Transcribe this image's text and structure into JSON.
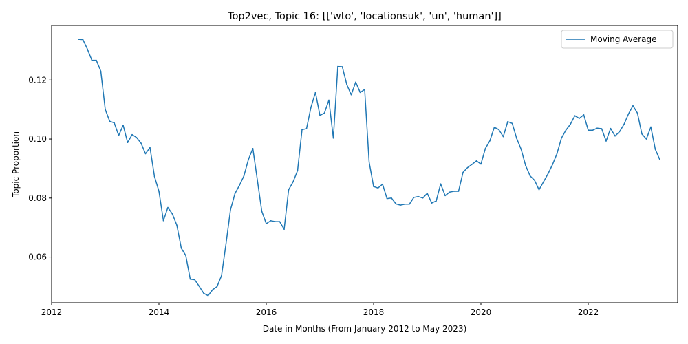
{
  "chart_data": {
    "type": "line",
    "title": "Top2vec, Topic 16: [['wto', 'locationsuk', 'un', 'human']]",
    "xlabel": "Date in Months (From January 2012 to May 2023)",
    "ylabel": "Topic Proportion",
    "xlim": [
      "2012-01",
      "2023-09"
    ],
    "ylim": [
      0.0445,
      0.1385
    ],
    "xticks": [
      "2012",
      "2014",
      "2016",
      "2018",
      "2020",
      "2022"
    ],
    "yticks": [
      "0.06",
      "0.08",
      "0.10",
      "0.12"
    ],
    "grid": false,
    "legend": {
      "position": "top-right",
      "entries": [
        "Moving Average"
      ]
    },
    "colors": {
      "line": "#1f77b4"
    },
    "series": [
      {
        "name": "Moving Average",
        "x": [
          "2012-07",
          "2012-08",
          "2012-09",
          "2012-10",
          "2012-11",
          "2012-12",
          "2013-01",
          "2013-02",
          "2013-03",
          "2013-04",
          "2013-05",
          "2013-06",
          "2013-07",
          "2013-08",
          "2013-09",
          "2013-10",
          "2013-11",
          "2013-12",
          "2014-01",
          "2014-02",
          "2014-03",
          "2014-04",
          "2014-05",
          "2014-06",
          "2014-07",
          "2014-08",
          "2014-09",
          "2014-10",
          "2014-11",
          "2014-12",
          "2015-01",
          "2015-02",
          "2015-03",
          "2015-04",
          "2015-05",
          "2015-06",
          "2015-07",
          "2015-08",
          "2015-09",
          "2015-10",
          "2015-11",
          "2015-12",
          "2016-01",
          "2016-02",
          "2016-03",
          "2016-04",
          "2016-05",
          "2016-06",
          "2016-07",
          "2016-08",
          "2016-09",
          "2016-10",
          "2016-11",
          "2016-12",
          "2017-01",
          "2017-02",
          "2017-03",
          "2017-04",
          "2017-05",
          "2017-06",
          "2017-07",
          "2017-08",
          "2017-09",
          "2017-10",
          "2017-11",
          "2017-12",
          "2018-01",
          "2018-02",
          "2018-03",
          "2018-04",
          "2018-05",
          "2018-06",
          "2018-07",
          "2018-08",
          "2018-09",
          "2018-10",
          "2018-11",
          "2018-12",
          "2019-01",
          "2019-02",
          "2019-03",
          "2019-04",
          "2019-05",
          "2019-06",
          "2019-07",
          "2019-08",
          "2019-09",
          "2019-10",
          "2019-11",
          "2019-12",
          "2020-01",
          "2020-02",
          "2020-03",
          "2020-04",
          "2020-05",
          "2020-06",
          "2020-07",
          "2020-08",
          "2020-09",
          "2020-10",
          "2020-11",
          "2020-12",
          "2021-01",
          "2021-02",
          "2021-03",
          "2021-04",
          "2021-05",
          "2021-06",
          "2021-07",
          "2021-08",
          "2021-09",
          "2021-10",
          "2021-11",
          "2021-12",
          "2022-01",
          "2022-02",
          "2022-03",
          "2022-04",
          "2022-05",
          "2022-06",
          "2022-07",
          "2022-08",
          "2022-09",
          "2022-10",
          "2022-11",
          "2022-12",
          "2023-01",
          "2023-02",
          "2023-03",
          "2023-04",
          "2023-05"
        ],
        "values": [
          0.1338,
          0.1337,
          0.1305,
          0.1267,
          0.1267,
          0.123,
          0.11,
          0.106,
          0.1055,
          0.1012,
          0.1047,
          0.0988,
          0.1015,
          0.1005,
          0.0986,
          0.095,
          0.0971,
          0.0873,
          0.0823,
          0.0723,
          0.0768,
          0.0746,
          0.0708,
          0.063,
          0.0605,
          0.0525,
          0.0523,
          0.0501,
          0.0477,
          0.0469,
          0.0489,
          0.05,
          0.0537,
          0.0645,
          0.076,
          0.0815,
          0.0843,
          0.0875,
          0.093,
          0.0968,
          0.0862,
          0.0755,
          0.0713,
          0.0723,
          0.072,
          0.072,
          0.0694,
          0.0828,
          0.0855,
          0.0893,
          0.1032,
          0.1035,
          0.1108,
          0.1158,
          0.108,
          0.1088,
          0.1132,
          0.1003,
          0.1246,
          0.1245,
          0.1185,
          0.115,
          0.1193,
          0.1158,
          0.1168,
          0.0922,
          0.0839,
          0.0834,
          0.0847,
          0.0798,
          0.08,
          0.078,
          0.0776,
          0.0779,
          0.0779,
          0.0802,
          0.0805,
          0.08,
          0.0816,
          0.0783,
          0.079,
          0.0848,
          0.0808,
          0.082,
          0.0823,
          0.0823,
          0.0887,
          0.0903,
          0.0914,
          0.0926,
          0.0915,
          0.0968,
          0.0994,
          0.104,
          0.1032,
          0.1008,
          0.1059,
          0.1053,
          0.1002,
          0.0965,
          0.091,
          0.0875,
          0.086,
          0.0828,
          0.0855,
          0.0882,
          0.0913,
          0.095,
          0.1003,
          0.103,
          0.105,
          0.1079,
          0.107,
          0.1082,
          0.103,
          0.103,
          0.1037,
          0.1035,
          0.0993,
          0.1036,
          0.101,
          0.1025,
          0.105,
          0.1085,
          0.1113,
          0.1088,
          0.1017,
          0.1,
          0.1041,
          0.0965,
          0.093
        ]
      }
    ]
  }
}
